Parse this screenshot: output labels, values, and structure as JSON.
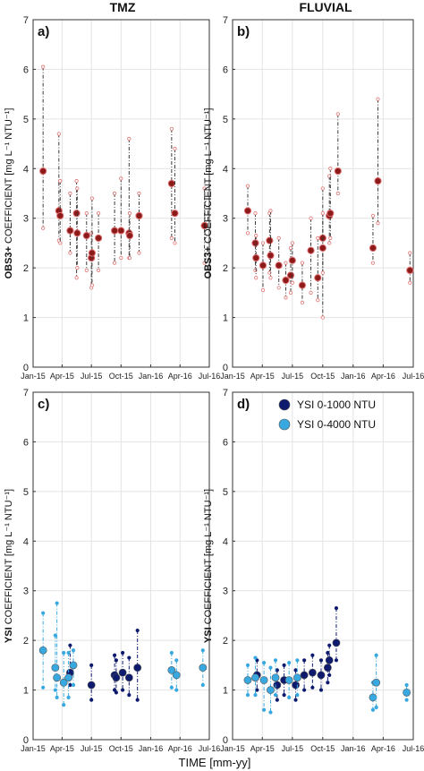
{
  "figure": {
    "column_titles": [
      "TMZ",
      "FLUVIAL"
    ],
    "xlabel": "TIME [mm-yy]",
    "x_ticks": [
      "Jan-15",
      "Apr-15",
      "Jul-15",
      "Oct-15",
      "Jan-16",
      "Apr-16",
      "Jul-16"
    ],
    "legend": [
      {
        "label": "YSI 0-1000 NTU",
        "color": "#0d1a6e"
      },
      {
        "label": "YSI 0-4000 NTU",
        "color": "#38a8e0"
      }
    ]
  },
  "chart_data": [
    {
      "type": "scatter",
      "panel_label": "a)",
      "column": "TMZ",
      "ylabel_bold": "OBS3+",
      "ylabel_rest": " COEFFICIENT [mg L⁻¹ NTU⁻¹]",
      "ylim": [
        0,
        7
      ],
      "yticks": [
        0,
        1,
        2,
        3,
        4,
        5,
        6,
        7
      ],
      "grid": true,
      "series": [
        {
          "color": "#8b1a1a",
          "errorbar_color": "#3a3a3a",
          "marker_edge": "#e07070",
          "points": [
            {
              "x": "2015-02-01",
              "y": 3.95,
              "lo": 2.8,
              "hi": 6.05
            },
            {
              "x": "2015-03-22",
              "y": 3.15,
              "lo": 2.55,
              "hi": 4.7
            },
            {
              "x": "2015-03-26",
              "y": 3.05,
              "lo": 2.5,
              "hi": 3.75
            },
            {
              "x": "2015-04-26",
              "y": 2.75,
              "lo": 2.3,
              "hi": 3.5
            },
            {
              "x": "2015-05-16",
              "y": 3.1,
              "lo": 1.8,
              "hi": 3.75
            },
            {
              "x": "2015-05-18",
              "y": 2.7,
              "lo": 2.0,
              "hi": 3.6
            },
            {
              "x": "2015-06-16",
              "y": 2.65,
              "lo": 1.95,
              "hi": 3.1
            },
            {
              "x": "2015-07-01",
              "y": 2.2,
              "lo": 1.6,
              "hi": 2.7
            },
            {
              "x": "2015-07-03",
              "y": 2.3,
              "lo": 1.65,
              "hi": 3.4
            },
            {
              "x": "2015-07-23",
              "y": 2.6,
              "lo": 1.95,
              "hi": 3.1
            },
            {
              "x": "2015-09-11",
              "y": 2.75,
              "lo": 2.1,
              "hi": 3.5
            },
            {
              "x": "2015-10-01",
              "y": 2.75,
              "lo": 2.2,
              "hi": 3.8
            },
            {
              "x": "2015-10-26",
              "y": 2.7,
              "lo": 2.2,
              "hi": 4.6
            },
            {
              "x": "2015-10-28",
              "y": 2.65,
              "lo": 2.2,
              "hi": 3.1
            },
            {
              "x": "2015-11-26",
              "y": 3.05,
              "lo": 2.3,
              "hi": 3.5
            },
            {
              "x": "2016-03-06",
              "y": 3.7,
              "lo": 2.6,
              "hi": 4.8
            },
            {
              "x": "2016-03-16",
              "y": 3.1,
              "lo": 2.5,
              "hi": 4.4
            },
            {
              "x": "2016-06-16",
              "y": 2.85,
              "lo": 2.1,
              "hi": 3.6
            }
          ]
        }
      ]
    },
    {
      "type": "scatter",
      "panel_label": "b)",
      "column": "FLUVIAL",
      "ylabel_bold": "OBS3+",
      "ylabel_rest": " COEFFICIENT [mg L⁻¹ NTU⁻¹]",
      "ylim": [
        0,
        7
      ],
      "yticks": [
        0,
        1,
        2,
        3,
        4,
        5,
        6,
        7
      ],
      "grid": true,
      "series": [
        {
          "color": "#8b1a1a",
          "errorbar_color": "#3a3a3a",
          "marker_edge": "#e07070",
          "points": [
            {
              "x": "2015-02-16",
              "y": 3.15,
              "lo": 2.7,
              "hi": 3.65
            },
            {
              "x": "2015-03-11",
              "y": 2.5,
              "lo": 1.95,
              "hi": 3.1
            },
            {
              "x": "2015-03-13",
              "y": 2.2,
              "lo": 1.8,
              "hi": 2.65
            },
            {
              "x": "2015-04-03",
              "y": 2.05,
              "lo": 1.55,
              "hi": 2.5
            },
            {
              "x": "2015-04-23",
              "y": 2.55,
              "lo": 1.9,
              "hi": 3.1
            },
            {
              "x": "2015-04-26",
              "y": 2.25,
              "lo": 1.8,
              "hi": 3.15
            },
            {
              "x": "2015-05-21",
              "y": 2.05,
              "lo": 1.6,
              "hi": 2.6
            },
            {
              "x": "2015-06-11",
              "y": 1.75,
              "lo": 1.4,
              "hi": 2.1
            },
            {
              "x": "2015-06-26",
              "y": 1.85,
              "lo": 1.5,
              "hi": 2.4
            },
            {
              "x": "2015-07-01",
              "y": 2.15,
              "lo": 1.7,
              "hi": 2.5
            },
            {
              "x": "2015-07-31",
              "y": 1.65,
              "lo": 1.3,
              "hi": 2.1
            },
            {
              "x": "2015-08-26",
              "y": 2.35,
              "lo": 1.5,
              "hi": 3.0
            },
            {
              "x": "2015-09-16",
              "y": 1.8,
              "lo": 1.35,
              "hi": 2.6
            },
            {
              "x": "2015-10-01",
              "y": 2.6,
              "lo": 1.0,
              "hi": 3.6
            },
            {
              "x": "2015-10-01",
              "y": 2.4,
              "lo": 1.9,
              "hi": 3.1
            },
            {
              "x": "2015-10-21",
              "y": 3.05,
              "lo": 2.5,
              "hi": 3.85
            },
            {
              "x": "2015-10-24",
              "y": 3.1,
              "lo": 2.6,
              "hi": 4.0
            },
            {
              "x": "2015-11-16",
              "y": 3.95,
              "lo": 3.5,
              "hi": 5.1
            },
            {
              "x": "2016-03-01",
              "y": 2.4,
              "lo": 2.1,
              "hi": 3.05
            },
            {
              "x": "2016-03-16",
              "y": 3.75,
              "lo": 2.9,
              "hi": 5.4
            },
            {
              "x": "2016-06-21",
              "y": 1.95,
              "lo": 1.7,
              "hi": 2.3
            }
          ]
        }
      ]
    },
    {
      "type": "scatter",
      "panel_label": "c)",
      "column": "TMZ",
      "ylabel_bold": "YSI",
      "ylabel_rest": " COEFFICIENT [mg L⁻¹ NTU⁻¹]",
      "ylim": [
        0,
        7
      ],
      "yticks": [
        0,
        1,
        2,
        3,
        4,
        5,
        6,
        7
      ],
      "grid": true,
      "series": [
        {
          "name": "YSI 0-1000 NTU",
          "color": "#0d1a6e",
          "points": [
            {
              "x": "2015-04-26",
              "y": 1.35,
              "lo": 1.1,
              "hi": 1.9
            },
            {
              "x": "2015-07-01",
              "y": 1.1,
              "lo": 0.8,
              "hi": 1.5
            },
            {
              "x": "2015-09-11",
              "y": 1.3,
              "lo": 1.0,
              "hi": 1.7
            },
            {
              "x": "2015-09-16",
              "y": 1.25,
              "lo": 0.95,
              "hi": 1.6
            },
            {
              "x": "2015-10-06",
              "y": 1.35,
              "lo": 1.0,
              "hi": 1.75
            },
            {
              "x": "2015-10-26",
              "y": 1.25,
              "lo": 0.9,
              "hi": 1.65
            },
            {
              "x": "2015-11-21",
              "y": 1.45,
              "lo": 0.8,
              "hi": 2.2
            }
          ]
        },
        {
          "name": "YSI 0-4000 NTU",
          "color": "#38a8e0",
          "points": [
            {
              "x": "2015-02-01",
              "y": 1.8,
              "lo": 1.05,
              "hi": 2.55
            },
            {
              "x": "2015-03-11",
              "y": 1.45,
              "lo": 1.0,
              "hi": 2.1
            },
            {
              "x": "2015-03-16",
              "y": 1.25,
              "lo": 0.85,
              "hi": 2.75
            },
            {
              "x": "2015-04-06",
              "y": 1.15,
              "lo": 0.7,
              "hi": 1.75
            },
            {
              "x": "2015-04-21",
              "y": 1.25,
              "lo": 0.85,
              "hi": 1.75
            },
            {
              "x": "2015-05-06",
              "y": 1.5,
              "lo": 1.1,
              "hi": 1.8
            },
            {
              "x": "2016-03-06",
              "y": 1.4,
              "lo": 1.05,
              "hi": 1.75
            },
            {
              "x": "2016-03-21",
              "y": 1.3,
              "lo": 1.0,
              "hi": 1.6
            },
            {
              "x": "2016-06-11",
              "y": 1.45,
              "lo": 1.1,
              "hi": 1.8
            }
          ]
        }
      ]
    },
    {
      "type": "scatter",
      "panel_label": "d)",
      "column": "FLUVIAL",
      "ylabel_bold": "YSI",
      "ylabel_rest": " COEFFICIENT [mg L⁻¹ NTU⁻¹]",
      "ylim": [
        0,
        7
      ],
      "yticks": [
        0,
        1,
        2,
        3,
        4,
        5,
        6,
        7
      ],
      "grid": true,
      "legend_position": "top-right",
      "series": [
        {
          "name": "YSI 0-1000 NTU",
          "color": "#0d1a6e",
          "points": [
            {
              "x": "2015-03-16",
              "y": 1.3,
              "lo": 1.0,
              "hi": 1.6
            },
            {
              "x": "2015-05-16",
              "y": 1.1,
              "lo": 0.8,
              "hi": 1.4
            },
            {
              "x": "2015-06-06",
              "y": 1.2,
              "lo": 0.9,
              "hi": 1.5
            },
            {
              "x": "2015-07-11",
              "y": 1.1,
              "lo": 0.8,
              "hi": 1.4
            },
            {
              "x": "2015-08-06",
              "y": 1.3,
              "lo": 1.0,
              "hi": 1.6
            },
            {
              "x": "2015-08-31",
              "y": 1.35,
              "lo": 1.05,
              "hi": 1.7
            },
            {
              "x": "2015-09-26",
              "y": 1.3,
              "lo": 1.0,
              "hi": 1.6
            },
            {
              "x": "2015-10-16",
              "y": 1.45,
              "lo": 1.15,
              "hi": 1.75
            },
            {
              "x": "2015-10-21",
              "y": 1.6,
              "lo": 1.3,
              "hi": 1.9
            },
            {
              "x": "2015-11-11",
              "y": 1.95,
              "lo": 1.6,
              "hi": 2.65
            }
          ]
        },
        {
          "name": "YSI 0-4000 NTU",
          "color": "#38a8e0",
          "points": [
            {
              "x": "2015-02-16",
              "y": 1.2,
              "lo": 0.9,
              "hi": 1.5
            },
            {
              "x": "2015-03-11",
              "y": 1.25,
              "lo": 0.9,
              "hi": 1.65
            },
            {
              "x": "2015-04-06",
              "y": 1.2,
              "lo": 0.6,
              "hi": 1.55
            },
            {
              "x": "2015-04-26",
              "y": 1.0,
              "lo": 0.55,
              "hi": 1.45
            },
            {
              "x": "2015-05-11",
              "y": 1.25,
              "lo": 0.9,
              "hi": 1.6
            },
            {
              "x": "2015-06-21",
              "y": 1.2,
              "lo": 0.85,
              "hi": 1.55
            },
            {
              "x": "2015-07-16",
              "y": 1.25,
              "lo": 0.9,
              "hi": 1.6
            },
            {
              "x": "2016-03-01",
              "y": 0.85,
              "lo": 0.6,
              "hi": 1.15
            },
            {
              "x": "2016-03-11",
              "y": 1.15,
              "lo": 0.65,
              "hi": 1.7
            },
            {
              "x": "2016-06-11",
              "y": 0.95,
              "lo": 0.8,
              "hi": 1.1
            }
          ]
        }
      ]
    }
  ]
}
